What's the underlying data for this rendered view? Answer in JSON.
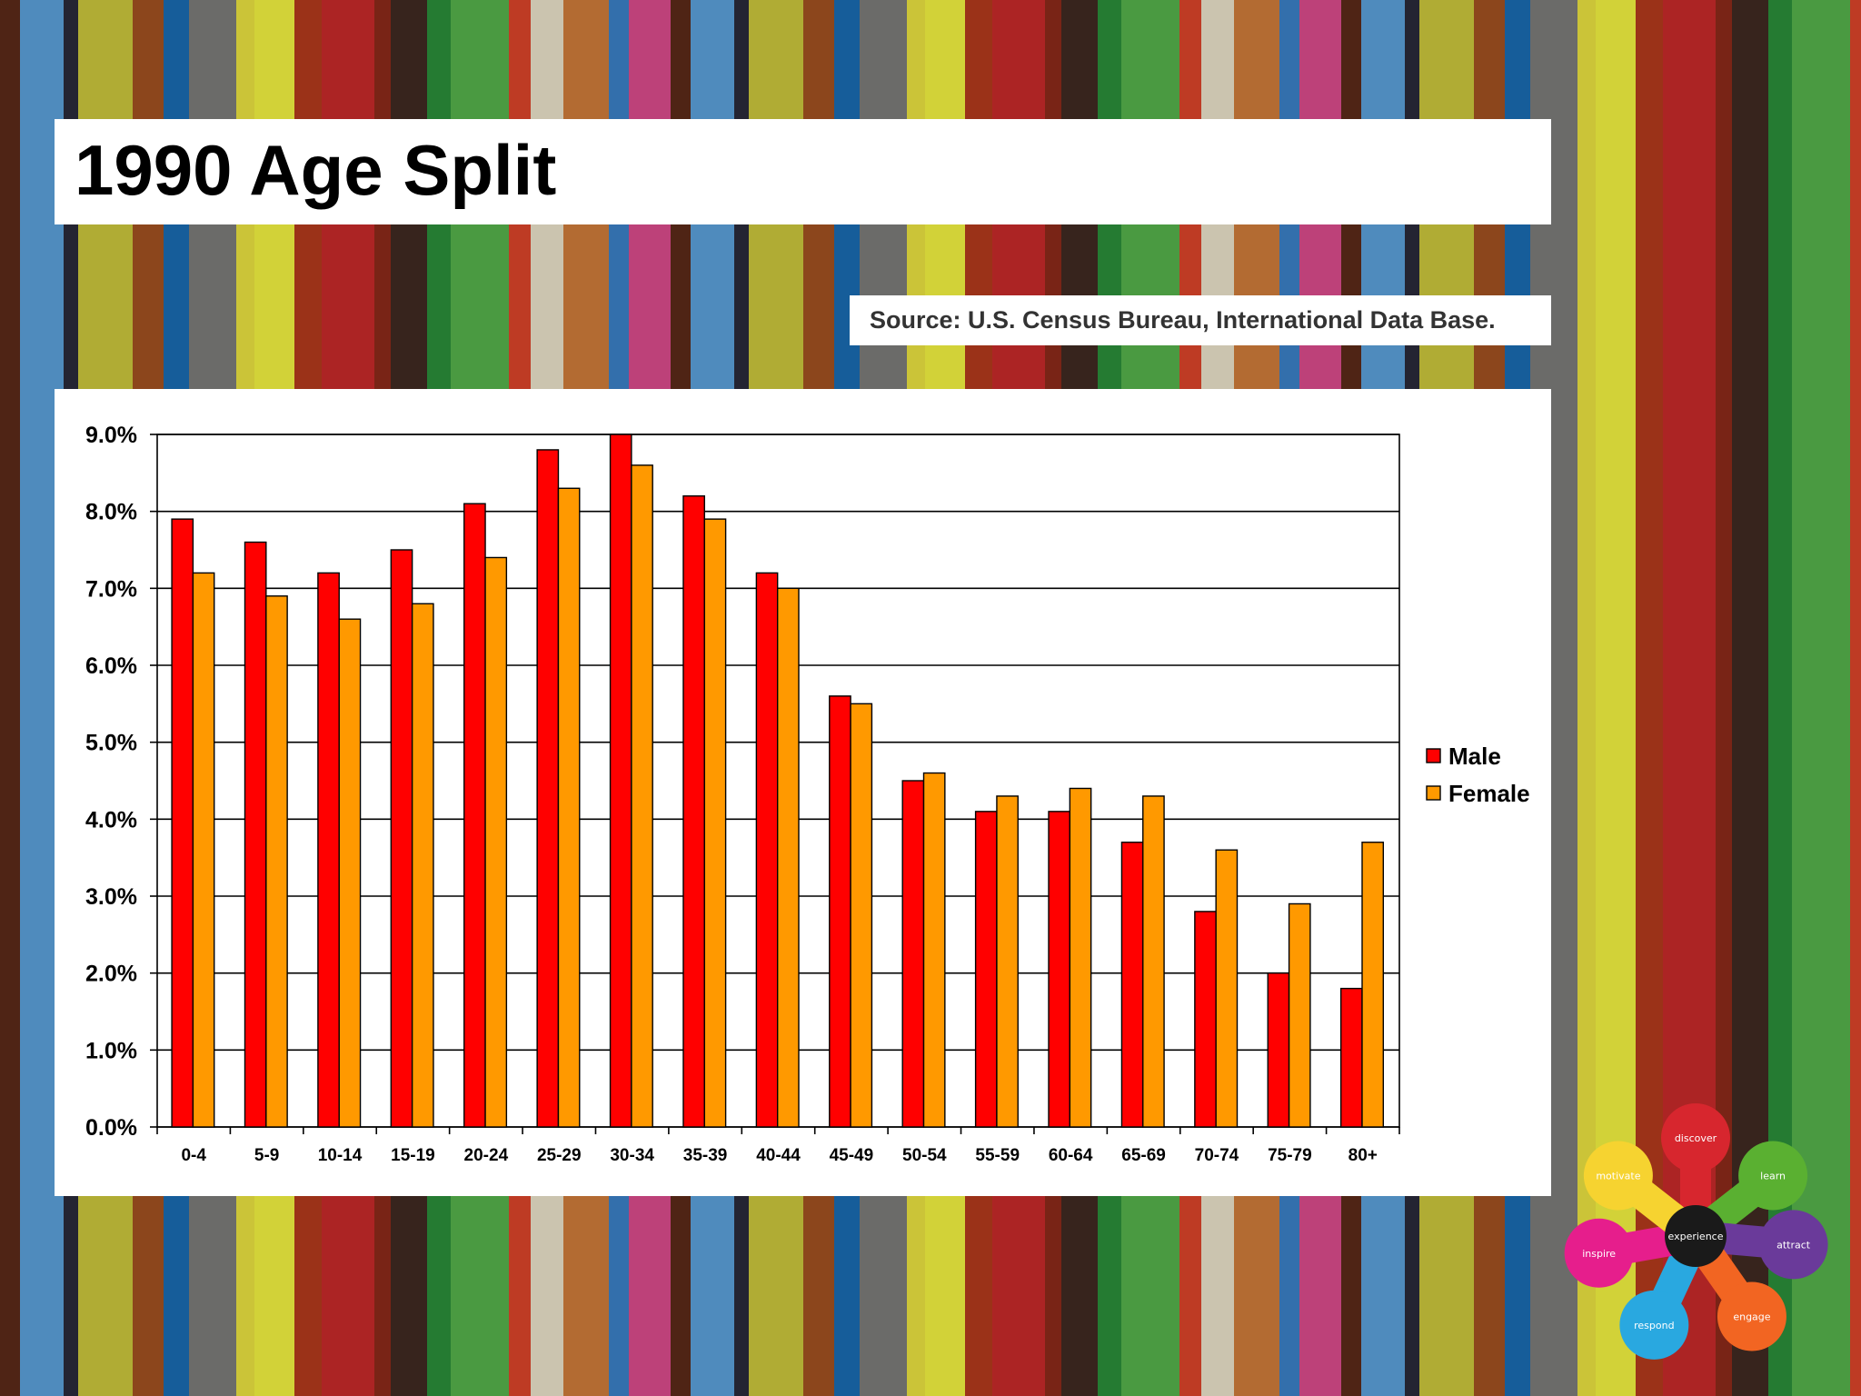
{
  "slide": {
    "title": "1990 Age Split",
    "source": "Source: U.S. Census Bureau, International Data Base."
  },
  "colors": {
    "male": "#ff0000",
    "female": "#ff9900",
    "axis": "#000000"
  },
  "chart_data": {
    "type": "bar",
    "title": "",
    "xlabel": "",
    "ylabel": "",
    "ylim": [
      0,
      9
    ],
    "y_ticks": [
      "0.0%",
      "1.0%",
      "2.0%",
      "3.0%",
      "4.0%",
      "5.0%",
      "6.0%",
      "7.0%",
      "8.0%",
      "9.0%"
    ],
    "grid": true,
    "legend_position": "right",
    "categories": [
      "0-4",
      "5-9",
      "10-14",
      "15-19",
      "20-24",
      "25-29",
      "30-34",
      "35-39",
      "40-44",
      "45-49",
      "50-54",
      "55-59",
      "60-64",
      "65-69",
      "70-74",
      "75-79",
      "80+"
    ],
    "series": [
      {
        "name": "Male",
        "values": [
          7.9,
          7.6,
          7.2,
          7.5,
          8.1,
          8.8,
          9.0,
          8.2,
          7.2,
          5.6,
          4.5,
          4.1,
          4.1,
          3.7,
          2.8,
          2.0,
          1.8
        ]
      },
      {
        "name": "Female",
        "values": [
          7.2,
          6.9,
          6.6,
          6.8,
          7.4,
          8.3,
          8.6,
          7.9,
          7.0,
          5.5,
          4.6,
          4.3,
          4.4,
          4.3,
          3.6,
          2.9,
          3.7
        ]
      }
    ]
  },
  "logo": {
    "center": "experience",
    "petals": [
      {
        "label": "discover",
        "color": "#d7262e"
      },
      {
        "label": "learn",
        "color": "#5ab031"
      },
      {
        "label": "attract",
        "color": "#6a3a9a"
      },
      {
        "label": "engage",
        "color": "#f26522"
      },
      {
        "label": "respond",
        "color": "#29a8e0"
      },
      {
        "label": "inspire",
        "color": "#e61e8c"
      },
      {
        "label": "motivate",
        "color": "#f6d330"
      }
    ]
  }
}
